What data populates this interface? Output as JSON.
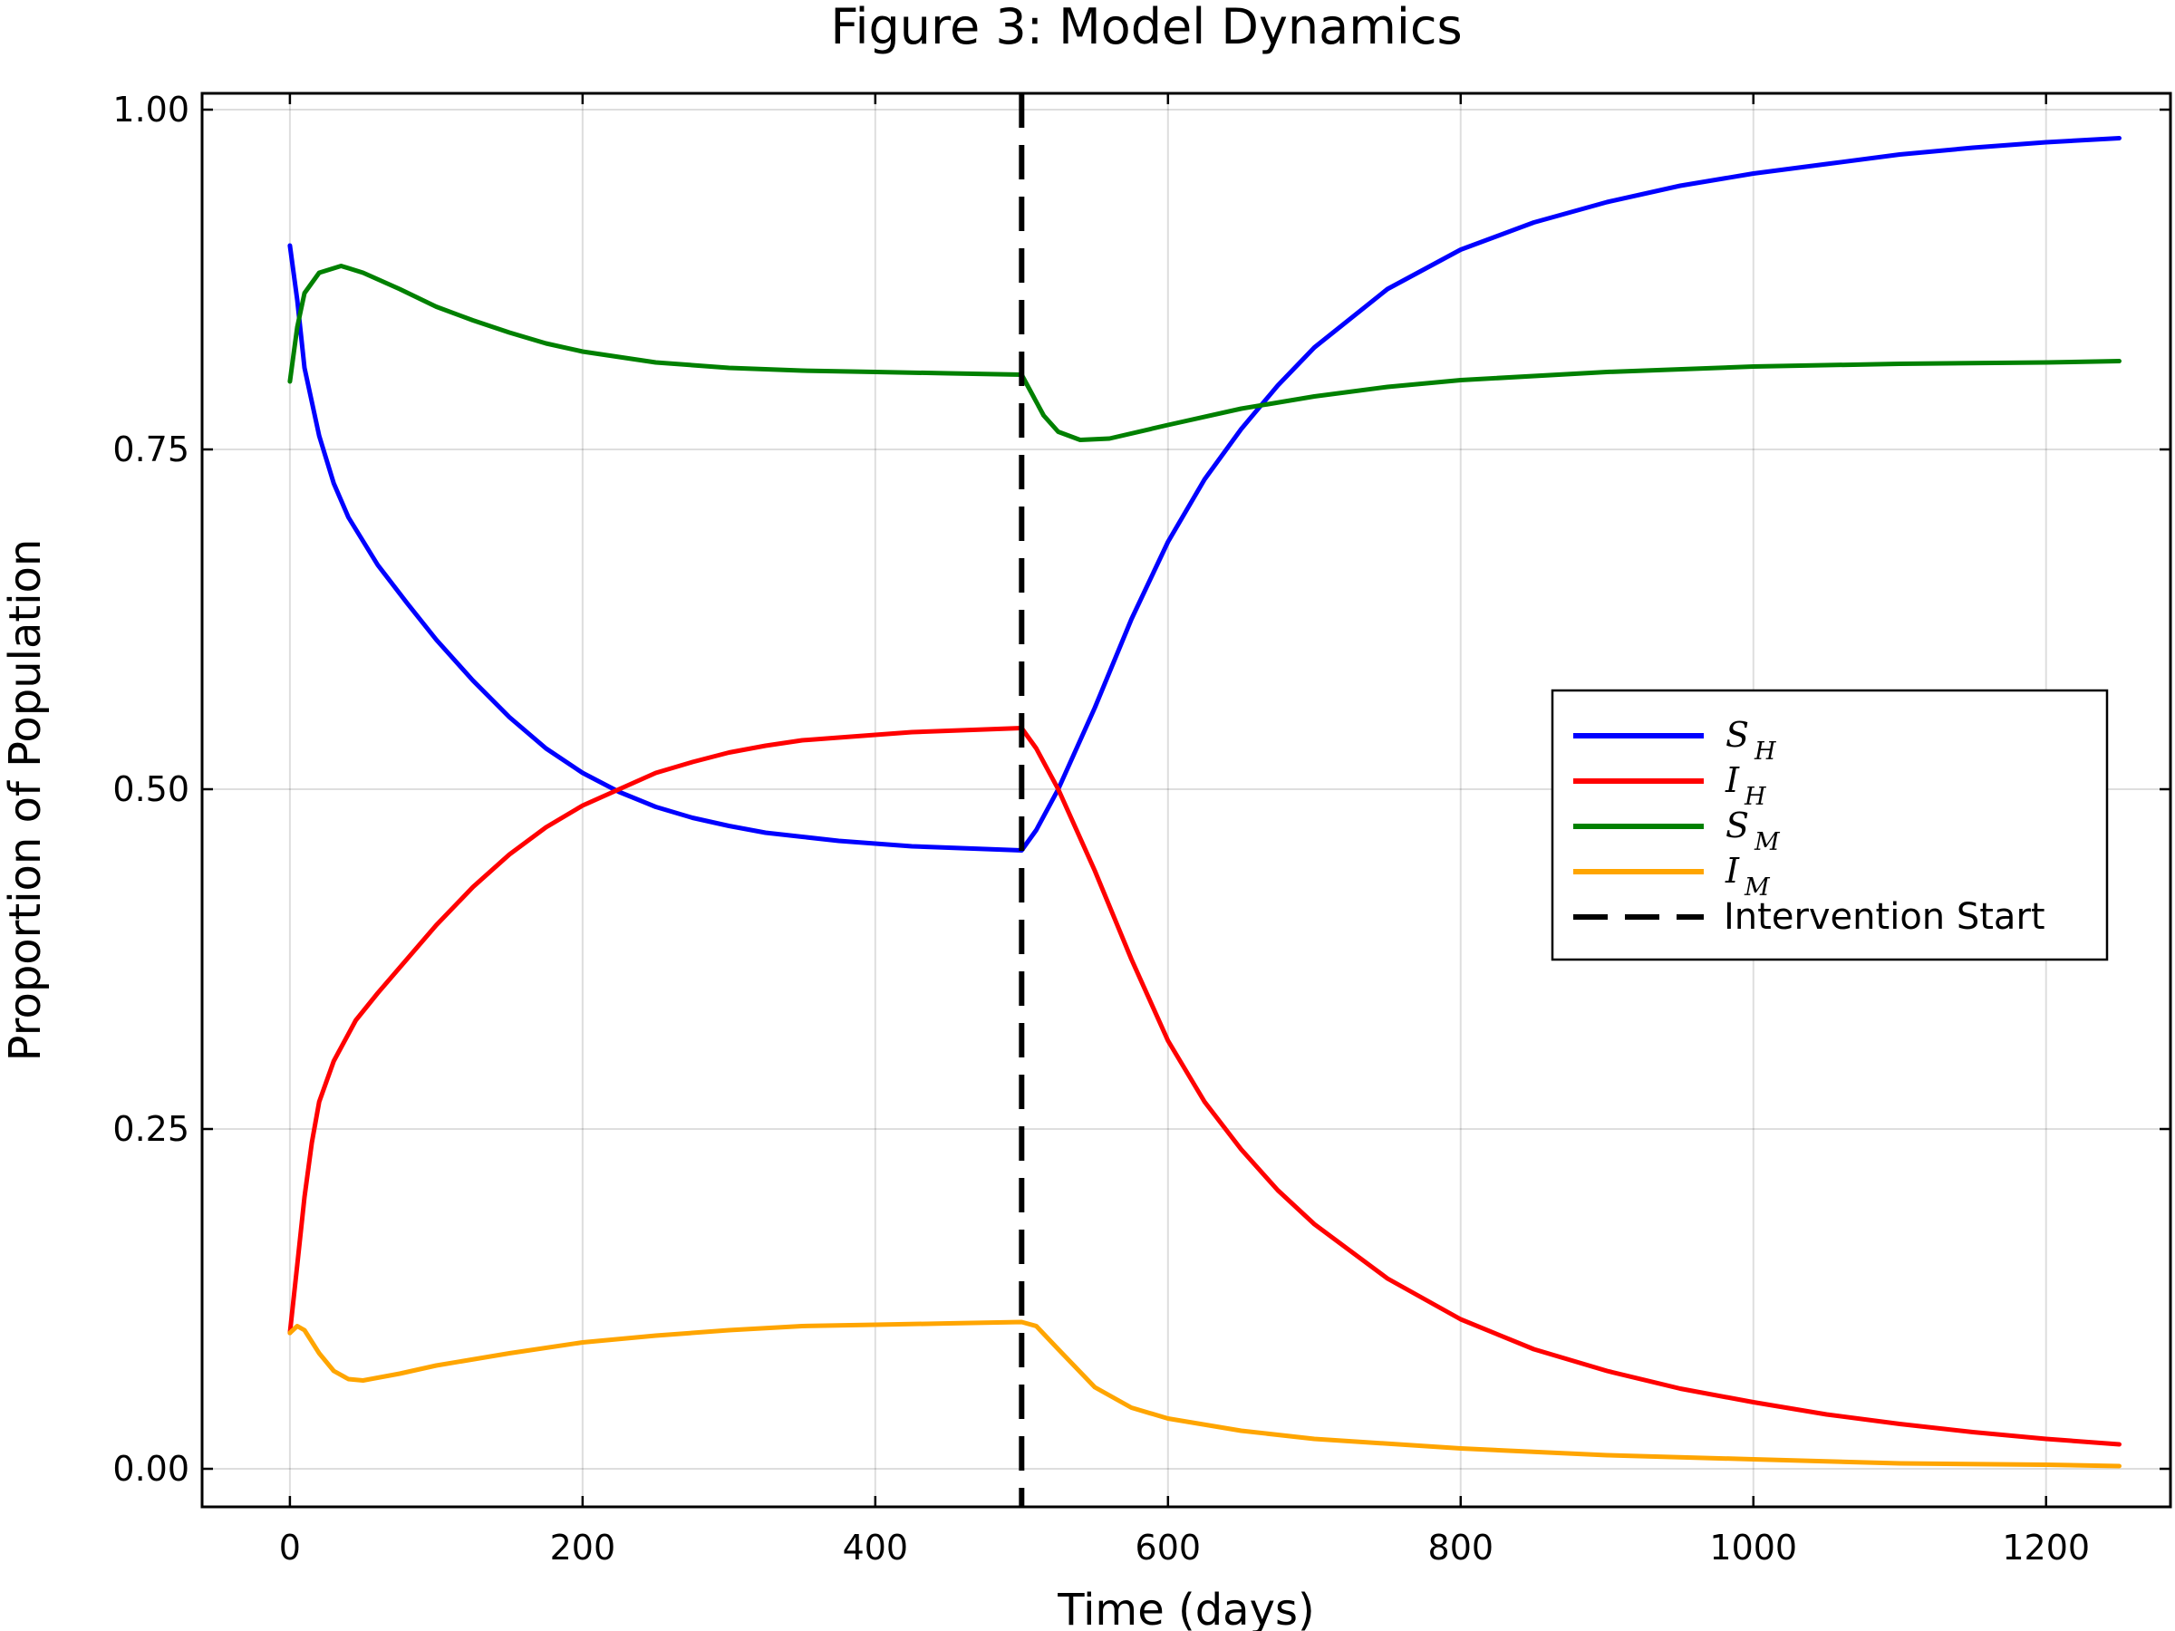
{
  "chart_data": {
    "type": "line",
    "title": "Figure 3: Model Dynamics",
    "xlabel": "Time (days)",
    "ylabel": "Proportion of Population",
    "xlim": [
      -60,
      1285
    ],
    "ylim": [
      -0.028,
      1.012
    ],
    "x_ticks": [
      0,
      200,
      400,
      600,
      800,
      1000,
      1200
    ],
    "x_tick_labels": [
      "0",
      "200",
      "400",
      "600",
      "800",
      "1000",
      "1200"
    ],
    "y_ticks": [
      0,
      0.25,
      0.5,
      0.75,
      1.0
    ],
    "y_tick_labels": [
      "0.00",
      "0.25",
      "0.50",
      "0.75",
      "1.00"
    ],
    "grid": true,
    "legend_position": "right",
    "series": [
      {
        "name": "S_H",
        "main": "S",
        "sub": "H",
        "color": "#0000ff",
        "points": [
          [
            0,
            0.9
          ],
          [
            5,
            0.86
          ],
          [
            10,
            0.81
          ],
          [
            20,
            0.76
          ],
          [
            30,
            0.725
          ],
          [
            40,
            0.7
          ],
          [
            60,
            0.665
          ],
          [
            80,
            0.637
          ],
          [
            100,
            0.61
          ],
          [
            125,
            0.58
          ],
          [
            150,
            0.553
          ],
          [
            175,
            0.53
          ],
          [
            200,
            0.512
          ],
          [
            225,
            0.498
          ],
          [
            250,
            0.487
          ],
          [
            275,
            0.479
          ],
          [
            300,
            0.473
          ],
          [
            325,
            0.468
          ],
          [
            350,
            0.465
          ],
          [
            375,
            0.462
          ],
          [
            400,
            0.46
          ],
          [
            425,
            0.458
          ],
          [
            450,
            0.457
          ],
          [
            475,
            0.456
          ],
          [
            500,
            0.455
          ],
          [
            510,
            0.47
          ],
          [
            525,
            0.5
          ],
          [
            550,
            0.56
          ],
          [
            575,
            0.625
          ],
          [
            600,
            0.682
          ],
          [
            625,
            0.728
          ],
          [
            650,
            0.765
          ],
          [
            675,
            0.797
          ],
          [
            700,
            0.825
          ],
          [
            750,
            0.868
          ],
          [
            800,
            0.897
          ],
          [
            850,
            0.917
          ],
          [
            900,
            0.932
          ],
          [
            950,
            0.944
          ],
          [
            1000,
            0.953
          ],
          [
            1050,
            0.96
          ],
          [
            1100,
            0.967
          ],
          [
            1150,
            0.972
          ],
          [
            1200,
            0.976
          ],
          [
            1250,
            0.979
          ]
        ]
      },
      {
        "name": "I_H",
        "main": "I",
        "sub": "H",
        "color": "#ff0000",
        "points": [
          [
            0,
            0.1
          ],
          [
            5,
            0.15
          ],
          [
            10,
            0.2
          ],
          [
            15,
            0.24
          ],
          [
            20,
            0.27
          ],
          [
            30,
            0.3
          ],
          [
            45,
            0.33
          ],
          [
            60,
            0.35
          ],
          [
            80,
            0.375
          ],
          [
            100,
            0.4
          ],
          [
            125,
            0.428
          ],
          [
            150,
            0.452
          ],
          [
            175,
            0.472
          ],
          [
            200,
            0.488
          ],
          [
            225,
            0.5
          ],
          [
            250,
            0.512
          ],
          [
            275,
            0.52
          ],
          [
            300,
            0.527
          ],
          [
            325,
            0.532
          ],
          [
            350,
            0.536
          ],
          [
            375,
            0.538
          ],
          [
            400,
            0.54
          ],
          [
            425,
            0.542
          ],
          [
            450,
            0.543
          ],
          [
            475,
            0.544
          ],
          [
            500,
            0.545
          ],
          [
            510,
            0.53
          ],
          [
            525,
            0.5
          ],
          [
            550,
            0.44
          ],
          [
            575,
            0.375
          ],
          [
            600,
            0.315
          ],
          [
            625,
            0.27
          ],
          [
            650,
            0.235
          ],
          [
            675,
            0.205
          ],
          [
            700,
            0.18
          ],
          [
            750,
            0.14
          ],
          [
            800,
            0.11
          ],
          [
            850,
            0.088
          ],
          [
            900,
            0.072
          ],
          [
            950,
            0.059
          ],
          [
            1000,
            0.049
          ],
          [
            1050,
            0.04
          ],
          [
            1100,
            0.033
          ],
          [
            1150,
            0.027
          ],
          [
            1200,
            0.022
          ],
          [
            1250,
            0.018
          ]
        ]
      },
      {
        "name": "S_M",
        "main": "S",
        "sub": "M",
        "color": "#008000",
        "points": [
          [
            0,
            0.8
          ],
          [
            5,
            0.84
          ],
          [
            10,
            0.865
          ],
          [
            20,
            0.88
          ],
          [
            35,
            0.885
          ],
          [
            50,
            0.88
          ],
          [
            75,
            0.868
          ],
          [
            100,
            0.855
          ],
          [
            125,
            0.845
          ],
          [
            150,
            0.836
          ],
          [
            175,
            0.828
          ],
          [
            200,
            0.822
          ],
          [
            250,
            0.814
          ],
          [
            300,
            0.81
          ],
          [
            350,
            0.808
          ],
          [
            400,
            0.807
          ],
          [
            450,
            0.806
          ],
          [
            500,
            0.805
          ],
          [
            505,
            0.795
          ],
          [
            515,
            0.775
          ],
          [
            525,
            0.763
          ],
          [
            540,
            0.757
          ],
          [
            560,
            0.758
          ],
          [
            600,
            0.768
          ],
          [
            650,
            0.78
          ],
          [
            700,
            0.789
          ],
          [
            750,
            0.796
          ],
          [
            800,
            0.801
          ],
          [
            900,
            0.807
          ],
          [
            1000,
            0.811
          ],
          [
            1100,
            0.813
          ],
          [
            1200,
            0.814
          ],
          [
            1250,
            0.815
          ]
        ]
      },
      {
        "name": "I_M",
        "main": "I",
        "sub": "M",
        "color": "#ffa500",
        "points": [
          [
            0,
            0.1
          ],
          [
            5,
            0.105
          ],
          [
            10,
            0.102
          ],
          [
            20,
            0.085
          ],
          [
            30,
            0.072
          ],
          [
            40,
            0.066
          ],
          [
            50,
            0.065
          ],
          [
            75,
            0.07
          ],
          [
            100,
            0.076
          ],
          [
            150,
            0.085
          ],
          [
            200,
            0.093
          ],
          [
            250,
            0.098
          ],
          [
            300,
            0.102
          ],
          [
            350,
            0.105
          ],
          [
            400,
            0.106
          ],
          [
            450,
            0.107
          ],
          [
            500,
            0.108
          ],
          [
            510,
            0.105
          ],
          [
            525,
            0.088
          ],
          [
            550,
            0.06
          ],
          [
            575,
            0.045
          ],
          [
            600,
            0.037
          ],
          [
            650,
            0.028
          ],
          [
            700,
            0.022
          ],
          [
            800,
            0.015
          ],
          [
            900,
            0.01
          ],
          [
            1000,
            0.007
          ],
          [
            1100,
            0.004
          ],
          [
            1200,
            0.003
          ],
          [
            1250,
            0.002
          ]
        ]
      }
    ],
    "vline": {
      "name": "Intervention Start",
      "x": 500,
      "color": "#000000",
      "style": "dashed"
    }
  }
}
